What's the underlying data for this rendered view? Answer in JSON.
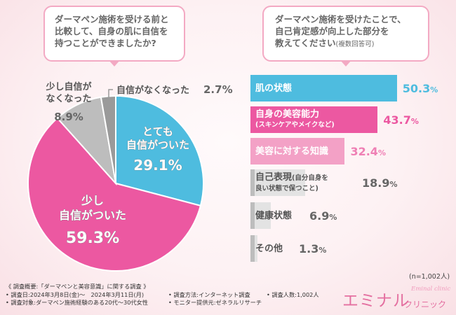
{
  "left_question": {
    "line1": "ダーマペン施術を受ける前と",
    "line2": "比較して、自身の肌に自信を",
    "line3": "持つことができましたか?"
  },
  "right_question": {
    "line1": "ダーマペン施術を受けたことで、",
    "line2": "自己肯定感が向上した部分を",
    "line3": "教えてください",
    "note": "(複数回答可)"
  },
  "chart_data": [
    {
      "type": "pie",
      "slices": [
        {
          "label_lines": [
            "とても",
            "自信がついた"
          ],
          "value": 29.1,
          "value_text": "29.1%",
          "color": "#4ebcdf"
        },
        {
          "label_lines": [
            "少し",
            "自信がついた"
          ],
          "value": 59.3,
          "value_text": "59.3%",
          "color": "#ec58a1"
        },
        {
          "label_lines": [
            "少し自信が",
            "なくなった"
          ],
          "value": 8.9,
          "value_text": "8.9%",
          "color": "#bdbdbd"
        },
        {
          "label_lines": [
            "自信がなくなった"
          ],
          "value": 2.7,
          "value_text": "2.7%",
          "color": "#9a9a9a"
        }
      ]
    },
    {
      "type": "bar",
      "orientation": "horizontal",
      "xlim": [
        0,
        100
      ],
      "bars": [
        {
          "label": "肌の状態",
          "sub": "",
          "value": 50.3,
          "value_text": "50.3",
          "color": "#4ebcdf",
          "text_color": "#ffffff",
          "value_color": "#4ebcdf"
        },
        {
          "label": "自身の美容能力",
          "sub": "(スキンケアやメイクなど)",
          "value": 43.7,
          "value_text": "43.7",
          "color": "#ec58a1",
          "text_color": "#ffffff",
          "value_color": "#ec58a1"
        },
        {
          "label": "美容に対する知識",
          "sub": "",
          "value": 32.4,
          "value_text": "32.4",
          "color": "#f3a1c6",
          "text_color": "#ffffff",
          "value_color": "#ef7fb4"
        },
        {
          "label": "自己表現",
          "sub2": "(自分自身を",
          "sub": "良い状態で保つこと)",
          "value": 18.9,
          "value_text": "18.9",
          "color": "#e3e3e3",
          "text_color": "#555555",
          "value_color": "#666666"
        },
        {
          "label": "健康状態",
          "sub": "",
          "value": 6.9,
          "value_text": "6.9",
          "color": "#e3e3e3",
          "text_color": "#555555",
          "value_color": "#666666"
        },
        {
          "label": "その他",
          "sub": "",
          "value": 1.3,
          "value_text": "1.3",
          "color": "#e3e3e3",
          "text_color": "#555555",
          "value_color": "#666666"
        }
      ],
      "percent_sign": "%"
    }
  ],
  "sample_note": "(n=1,002人)",
  "footer": {
    "title": "《 調査概要:「ダーマペンと美容意識」に関する調査 》",
    "date": "• 調査日:2024年3月8日(金)〜　2024年3月11日(月)",
    "method": "• 調査方法:インターネット調査",
    "count": "• 調査人数:1,002人",
    "target": "• 調査対象:ダーマペン施術経験のある20代〜30代女性",
    "provider": "• モニター提供元:ゼネラルリサーチ"
  },
  "logo": {
    "main": "エミナル",
    "kana": "クリニック",
    "en": "Eminal clinic"
  }
}
